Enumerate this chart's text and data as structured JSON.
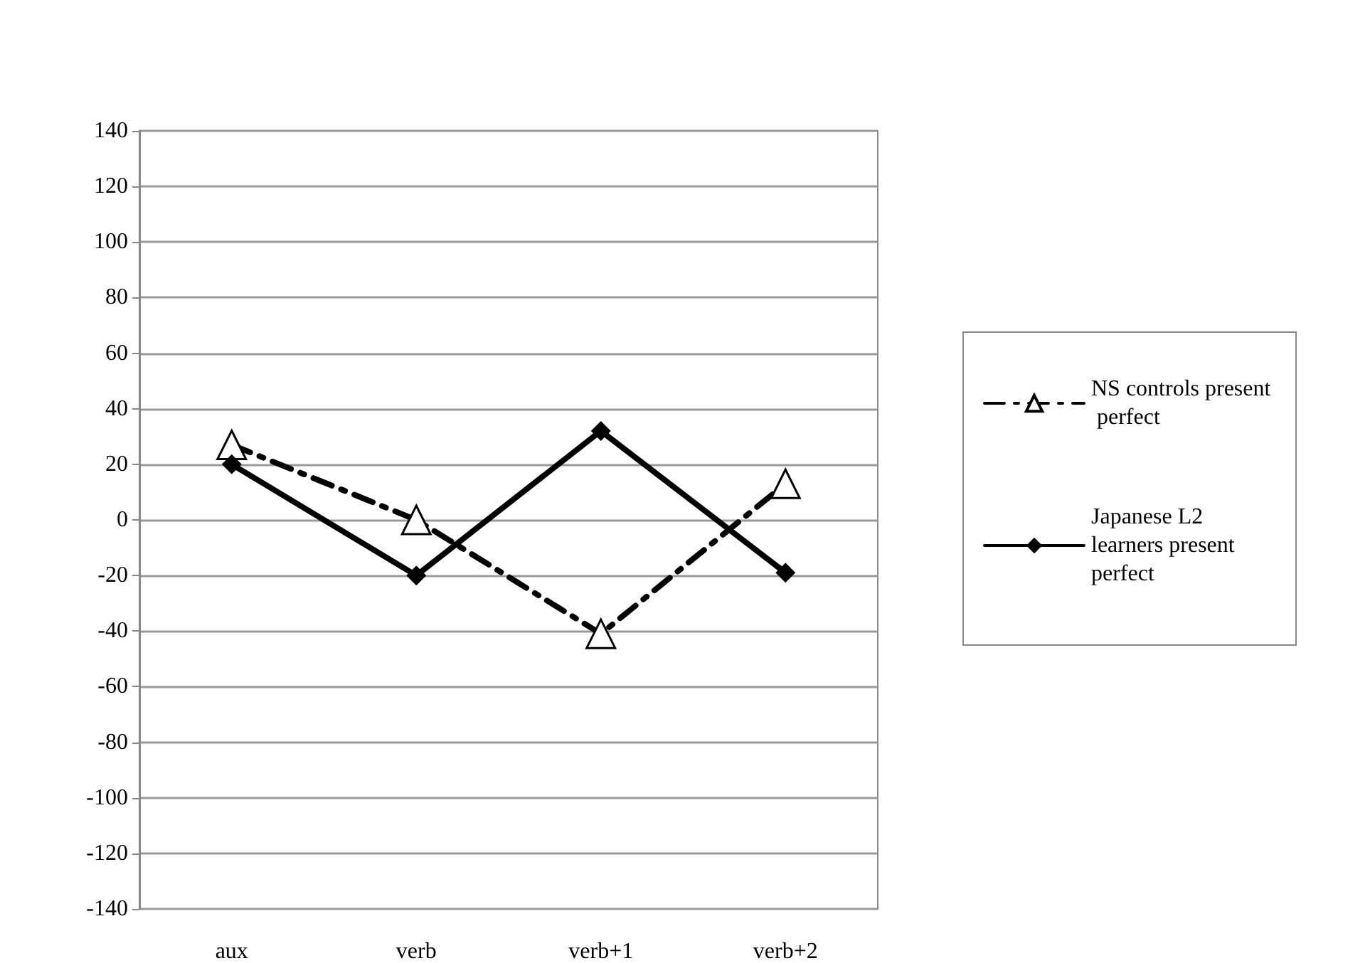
{
  "chart_data": {
    "type": "line",
    "categories": [
      "aux",
      "verb",
      "verb+1",
      "verb+2"
    ],
    "series": [
      {
        "name": "NS controls present perfect",
        "color": "#000000",
        "values": [
          27,
          0,
          -41,
          13
        ],
        "marker": "triangle",
        "line_style": "dashed"
      },
      {
        "name": "Japanese L2 learners present perfect",
        "color": "#000000",
        "values": [
          20,
          -20,
          32,
          -19
        ],
        "marker": "diamond",
        "line_style": "solid"
      }
    ],
    "ylim": [
      -140,
      140
    ],
    "yticks": [
      -140,
      -120,
      -100,
      -80,
      -60,
      -40,
      -20,
      0,
      20,
      40,
      60,
      80,
      100,
      120,
      140
    ],
    "grid": "y",
    "legend": "right"
  }
}
